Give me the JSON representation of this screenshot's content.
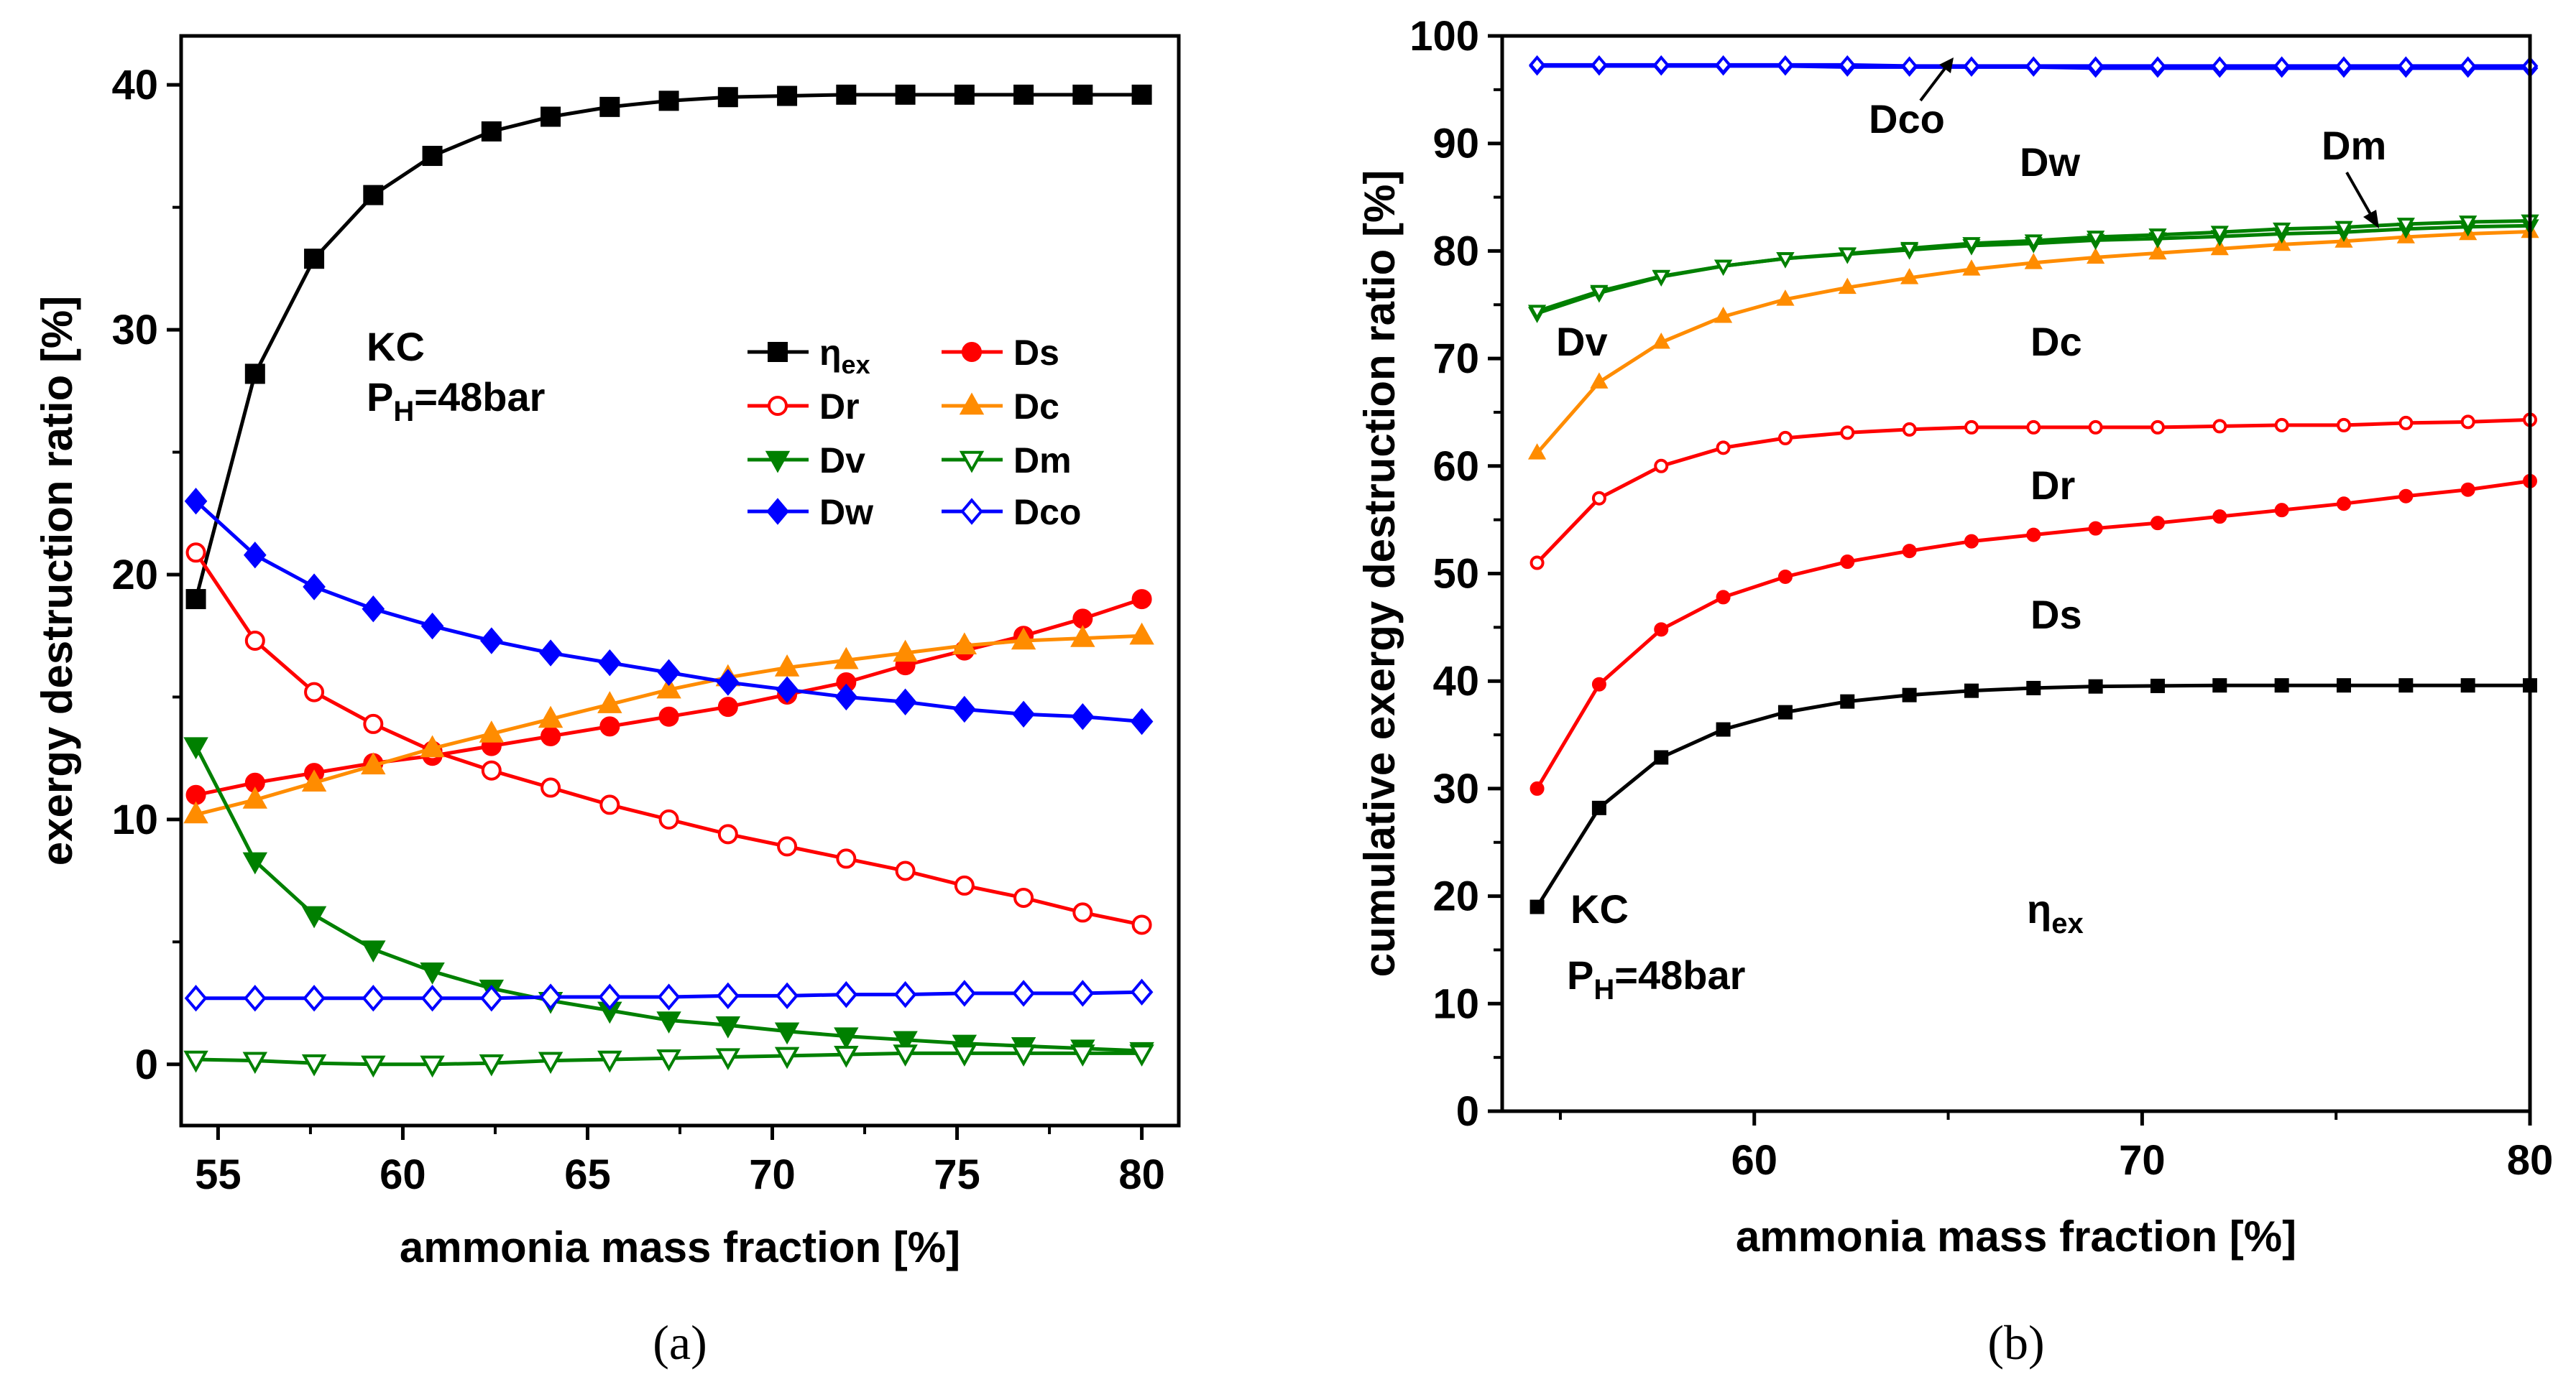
{
  "chart_data": [
    {
      "type": "line",
      "panel_label": "(a)",
      "xlabel": "ammonia mass fraction [%]",
      "ylabel": "exergy destruction ratio [%]",
      "xlim": [
        54,
        81
      ],
      "ylim": [
        -2.5,
        42
      ],
      "xticks": [
        "55",
        "60",
        "65",
        "70",
        "75",
        "80"
      ],
      "yticks": [
        "0",
        "10",
        "20",
        "30",
        "40"
      ],
      "annotation": {
        "line1": "KC",
        "line2_main": "P",
        "line2_sub": "H",
        "line2_rest": "=48bar"
      },
      "legend": {
        "placement": "top-right",
        "columns": 2
      },
      "x": [
        54.4,
        56.0,
        57.6,
        59.2,
        60.8,
        62.4,
        64.0,
        65.6,
        67.2,
        68.8,
        70.4,
        72.0,
        73.6,
        75.2,
        76.8,
        78.4,
        80.0
      ],
      "series": [
        {
          "name": "ηex",
          "label_main": "η",
          "label_sub": "ex",
          "color": "#000000",
          "marker": "square",
          "filled": true,
          "values": [
            19.0,
            28.2,
            32.9,
            35.5,
            37.1,
            38.1,
            38.7,
            39.1,
            39.35,
            39.5,
            39.55,
            39.6,
            39.6,
            39.6,
            39.6,
            39.6,
            39.6
          ]
        },
        {
          "name": "Ds",
          "label_main": "Ds",
          "color": "#ff0000",
          "marker": "circle",
          "filled": true,
          "values": [
            11.0,
            11.5,
            11.9,
            12.3,
            12.6,
            13.0,
            13.4,
            13.8,
            14.2,
            14.6,
            15.1,
            15.6,
            16.3,
            16.9,
            17.5,
            18.2,
            19.0
          ]
        },
        {
          "name": "Dr",
          "label_main": "Dr",
          "color": "#ff0000",
          "marker": "circle",
          "filled": false,
          "values": [
            20.9,
            17.3,
            15.2,
            13.9,
            12.8,
            12.0,
            11.3,
            10.6,
            10.0,
            9.4,
            8.9,
            8.4,
            7.9,
            7.3,
            6.8,
            6.2,
            5.7
          ]
        },
        {
          "name": "Dc",
          "label_main": "Dc",
          "color": "#ff8c00",
          "marker": "triangle-up",
          "filled": true,
          "values": [
            10.2,
            10.8,
            11.5,
            12.2,
            12.9,
            13.5,
            14.1,
            14.7,
            15.3,
            15.8,
            16.2,
            16.5,
            16.8,
            17.1,
            17.3,
            17.4,
            17.5
          ]
        },
        {
          "name": "Dv",
          "label_main": "Dv",
          "color": "#008000",
          "marker": "triangle-down",
          "filled": true,
          "values": [
            13.0,
            8.3,
            6.1,
            4.7,
            3.8,
            3.1,
            2.6,
            2.2,
            1.8,
            1.6,
            1.35,
            1.15,
            1.0,
            0.85,
            0.75,
            0.65,
            0.55
          ]
        },
        {
          "name": "Dm",
          "label_main": "Dm",
          "color": "#008000",
          "marker": "triangle-down",
          "filled": false,
          "values": [
            0.2,
            0.15,
            0.05,
            0.0,
            0.0,
            0.05,
            0.15,
            0.2,
            0.25,
            0.3,
            0.35,
            0.4,
            0.45,
            0.45,
            0.45,
            0.45,
            0.45
          ]
        },
        {
          "name": "Dw",
          "label_main": "Dw",
          "color": "#0000ff",
          "marker": "diamond",
          "filled": true,
          "values": [
            23.0,
            20.8,
            19.5,
            18.6,
            17.9,
            17.3,
            16.8,
            16.4,
            16.0,
            15.6,
            15.3,
            15.0,
            14.8,
            14.5,
            14.3,
            14.2,
            14.0
          ]
        },
        {
          "name": "Dco",
          "label_main": "Dco",
          "color": "#0000ff",
          "marker": "diamond",
          "filled": false,
          "values": [
            2.7,
            2.7,
            2.7,
            2.7,
            2.7,
            2.7,
            2.75,
            2.75,
            2.75,
            2.8,
            2.8,
            2.85,
            2.85,
            2.9,
            2.9,
            2.9,
            2.95
          ]
        }
      ]
    },
    {
      "type": "line",
      "panel_label": "(b)",
      "xlabel": "ammonia mass fraction [%]",
      "ylabel": "cumulative exergy destruction ratio [%]",
      "xlim": [
        53.5,
        80
      ],
      "ylim": [
        0,
        100
      ],
      "xticks": [
        "60",
        "70",
        "80"
      ],
      "yticks": [
        "0",
        "10",
        "20",
        "30",
        "40",
        "50",
        "60",
        "70",
        "80",
        "90",
        "100"
      ],
      "annotation": {
        "line1": "KC",
        "line2_main": "P",
        "line2_sub": "H",
        "line2_rest": "=48bar"
      },
      "region_labels": {
        "eta_main": "η",
        "eta_sub": "ex",
        "ds": "Ds",
        "dr": "Dr",
        "dc": "Dc",
        "dv": "Dv",
        "dw": "Dw",
        "dm": "Dm",
        "dco": "Dco"
      },
      "x": [
        54.4,
        56.0,
        57.6,
        59.2,
        60.8,
        62.4,
        64.0,
        65.6,
        67.2,
        68.8,
        70.4,
        72.0,
        73.6,
        75.2,
        76.8,
        78.4,
        80.0
      ],
      "series": [
        {
          "name": "ηex",
          "color": "#000000",
          "marker": "square",
          "filled": true,
          "values": [
            19.0,
            28.2,
            32.9,
            35.5,
            37.1,
            38.1,
            38.7,
            39.1,
            39.35,
            39.5,
            39.55,
            39.6,
            39.6,
            39.6,
            39.6,
            39.6,
            39.6
          ]
        },
        {
          "name": "Ds",
          "color": "#ff0000",
          "marker": "circle",
          "filled": true,
          "values": [
            30.0,
            39.7,
            44.8,
            47.8,
            49.7,
            51.1,
            52.1,
            53.0,
            53.6,
            54.2,
            54.7,
            55.3,
            55.9,
            56.5,
            57.2,
            57.8,
            58.6
          ]
        },
        {
          "name": "Dr",
          "color": "#ff0000",
          "marker": "circle",
          "filled": false,
          "values": [
            51.0,
            57.0,
            60.0,
            61.7,
            62.6,
            63.1,
            63.4,
            63.6,
            63.6,
            63.6,
            63.6,
            63.7,
            63.8,
            63.8,
            64.0,
            64.1,
            64.3
          ]
        },
        {
          "name": "Dc",
          "color": "#ff8c00",
          "marker": "triangle-up",
          "filled": true,
          "values": [
            61.2,
            67.8,
            71.5,
            73.9,
            75.5,
            76.6,
            77.5,
            78.3,
            78.9,
            79.4,
            79.8,
            80.2,
            80.6,
            80.9,
            81.3,
            81.6,
            81.8
          ]
        },
        {
          "name": "Dv",
          "color": "#008000",
          "marker": "triangle-down",
          "filled": true,
          "values": [
            74.2,
            76.1,
            77.6,
            78.6,
            79.3,
            79.7,
            80.1,
            80.5,
            80.7,
            81.0,
            81.15,
            81.35,
            81.6,
            81.75,
            82.05,
            82.25,
            82.35
          ]
        },
        {
          "name": "Dm",
          "color": "#008000",
          "marker": "triangle-down",
          "filled": false,
          "values": [
            74.4,
            76.25,
            77.65,
            78.6,
            79.3,
            79.75,
            80.25,
            80.7,
            80.95,
            81.3,
            81.5,
            81.75,
            82.05,
            82.2,
            82.5,
            82.7,
            82.8
          ]
        },
        {
          "name": "Dw",
          "color": "#0000ff",
          "marker": "diamond",
          "filled": true,
          "values": [
            97.2,
            97.2,
            97.2,
            97.2,
            97.2,
            97.1,
            97.1,
            97.1,
            97.1,
            97.0,
            97.0,
            97.0,
            97.0,
            97.0,
            97.0,
            97.0,
            97.0
          ]
        },
        {
          "name": "Dco",
          "color": "#0000ff",
          "marker": "diamond",
          "filled": false,
          "values": [
            97.3,
            97.3,
            97.3,
            97.3,
            97.3,
            97.3,
            97.2,
            97.2,
            97.2,
            97.2,
            97.2,
            97.2,
            97.2,
            97.2,
            97.2,
            97.2,
            97.2
          ]
        }
      ]
    }
  ]
}
